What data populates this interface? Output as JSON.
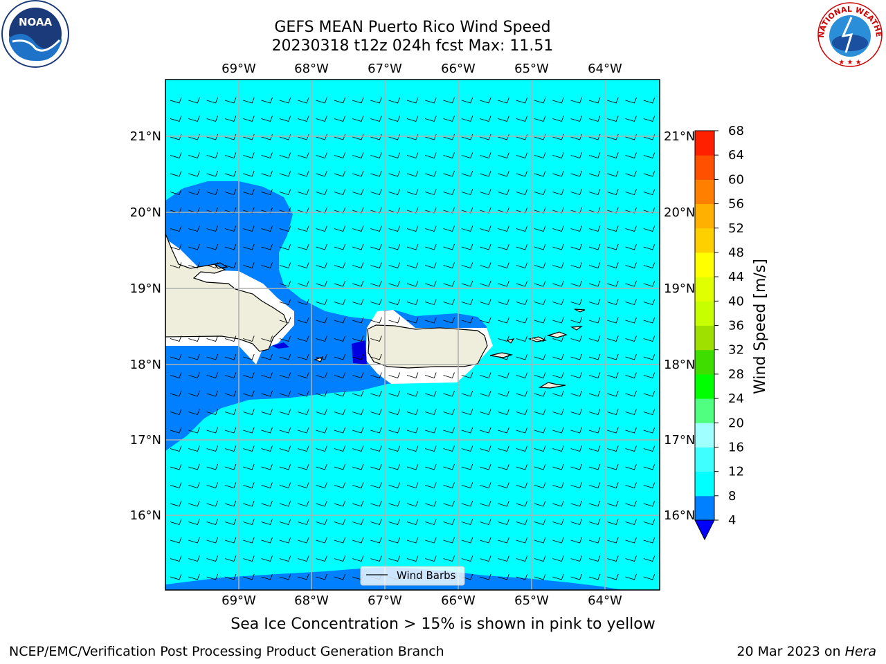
{
  "header": {
    "title_line1": "GEFS MEAN Puerto Rico Wind Speed",
    "title_line2": "20230318 t12z 024h fcst   Max: 11.51"
  },
  "map": {
    "lon_labels": [
      "69°W",
      "68°W",
      "67°W",
      "66°W",
      "65°W",
      "64°W"
    ],
    "lat_labels": [
      "21°N",
      "20°N",
      "19°N",
      "18°N",
      "17°N",
      "16°N"
    ],
    "legend_label": "Wind Barbs",
    "colors": {
      "ocean_cyan": "#00ffff",
      "band_blue": "#0080ff",
      "deep_blue": "#0000e0",
      "land": "#efeedc",
      "grid": "#b0b0b0"
    }
  },
  "colorbar": {
    "label": "Wind Speed [m/s]",
    "ticks": [
      "4",
      "8",
      "12",
      "16",
      "20",
      "24",
      "28",
      "32",
      "36",
      "40",
      "44",
      "48",
      "52",
      "56",
      "60",
      "64",
      "68"
    ],
    "colors": [
      "#0080ff",
      "#00ffff",
      "#40ffff",
      "#a0ffff",
      "#50ff80",
      "#00ff00",
      "#40dd00",
      "#a0e000",
      "#c8ff00",
      "#e0ff00",
      "#ffff00",
      "#ffd000",
      "#ffb000",
      "#ff8000",
      "#ff5000",
      "#ff2000"
    ],
    "under_color": "#0000ff"
  },
  "caption": "Sea Ice Concentration > 15% is shown in pink to yellow",
  "footer": {
    "left": "NCEP/EMC/Verification Post Processing Product Generation Branch",
    "date": "20 Mar 2023 on ",
    "machine": "Hera"
  },
  "logos": {
    "noaa_text": "NOAA",
    "nws_text": "NATIONAL WEATHER SERVICE"
  }
}
